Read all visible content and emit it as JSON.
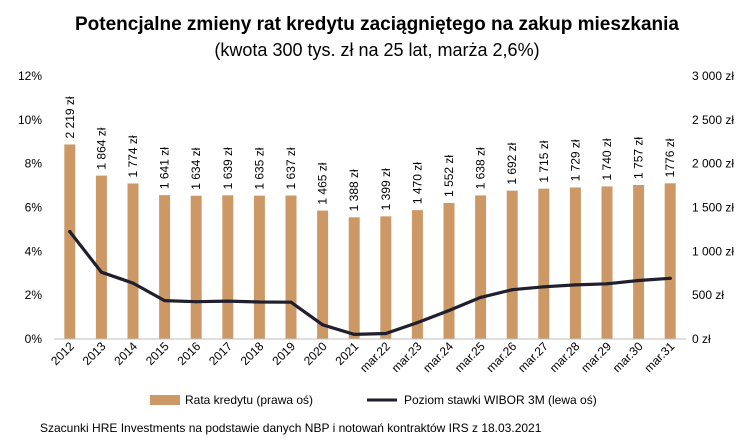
{
  "chart_data": {
    "type": "bar",
    "title": "Potencjalne zmieny rat kredytu zaciągniętego na zakup mieszkania",
    "subtitle": "(kwota 300 tys. zł na 25 lat, marża 2,6%)",
    "categories": [
      "2012",
      "2013",
      "2014",
      "2015",
      "2016",
      "2017",
      "2018",
      "2019",
      "2020",
      "2021",
      "mar.22",
      "mar.23",
      "mar.24",
      "mar.25",
      "mar.26",
      "mar.27",
      "mar.28",
      "mar.29",
      "mar.30",
      "mar.31"
    ],
    "series": [
      {
        "name": "Rata kredytu (prawa oś)",
        "type": "bar",
        "axis": "right",
        "color": "#CC9966",
        "values": [
          2219,
          1864,
          1774,
          1641,
          1634,
          1639,
          1635,
          1637,
          1465,
          1388,
          1399,
          1470,
          1552,
          1638,
          1692,
          1715,
          1729,
          1740,
          1757,
          1776
        ],
        "labels": [
          "2 219 zł",
          "1 864 zł",
          "1 774 zł",
          "1 641 zł",
          "1 634 zł",
          "1 639 zł",
          "1 635 zł",
          "1 637 zł",
          "1 465 zł",
          "1 388 zł",
          "1 399 zł",
          "1 470 zł",
          "1 552 zł",
          "1 638 zł",
          "1 692 zł",
          "1 715 zł",
          "1 729 zł",
          "1 740 zł",
          "1 757 zł",
          "1776 zł"
        ]
      },
      {
        "name": "Poziom stawki WIBOR 3M (lewa oś)",
        "type": "line",
        "axis": "left",
        "color": "#1f1f2e",
        "values": [
          4.9,
          3.05,
          2.55,
          1.75,
          1.7,
          1.73,
          1.69,
          1.68,
          0.65,
          0.21,
          0.25,
          0.75,
          1.3,
          1.9,
          2.25,
          2.38,
          2.47,
          2.52,
          2.67,
          2.77
        ]
      }
    ],
    "y_left": {
      "ylim": [
        0,
        12
      ],
      "ticks": [
        "0%",
        "2%",
        "4%",
        "6%",
        "8%",
        "10%",
        "12%"
      ]
    },
    "y_right": {
      "ylim": [
        0,
        3000
      ],
      "ticks": [
        "0 zł",
        "500 zł",
        "1 000 zł",
        "1 500 zł",
        "2 000 zł",
        "2 500 zł",
        "3 000 zł"
      ]
    },
    "grid": false,
    "legend_position": "bottom"
  },
  "source_note": "Szacunki HRE Investments na podstawie danych NBP i notowań kontraktów IRS z 18.03.2021"
}
